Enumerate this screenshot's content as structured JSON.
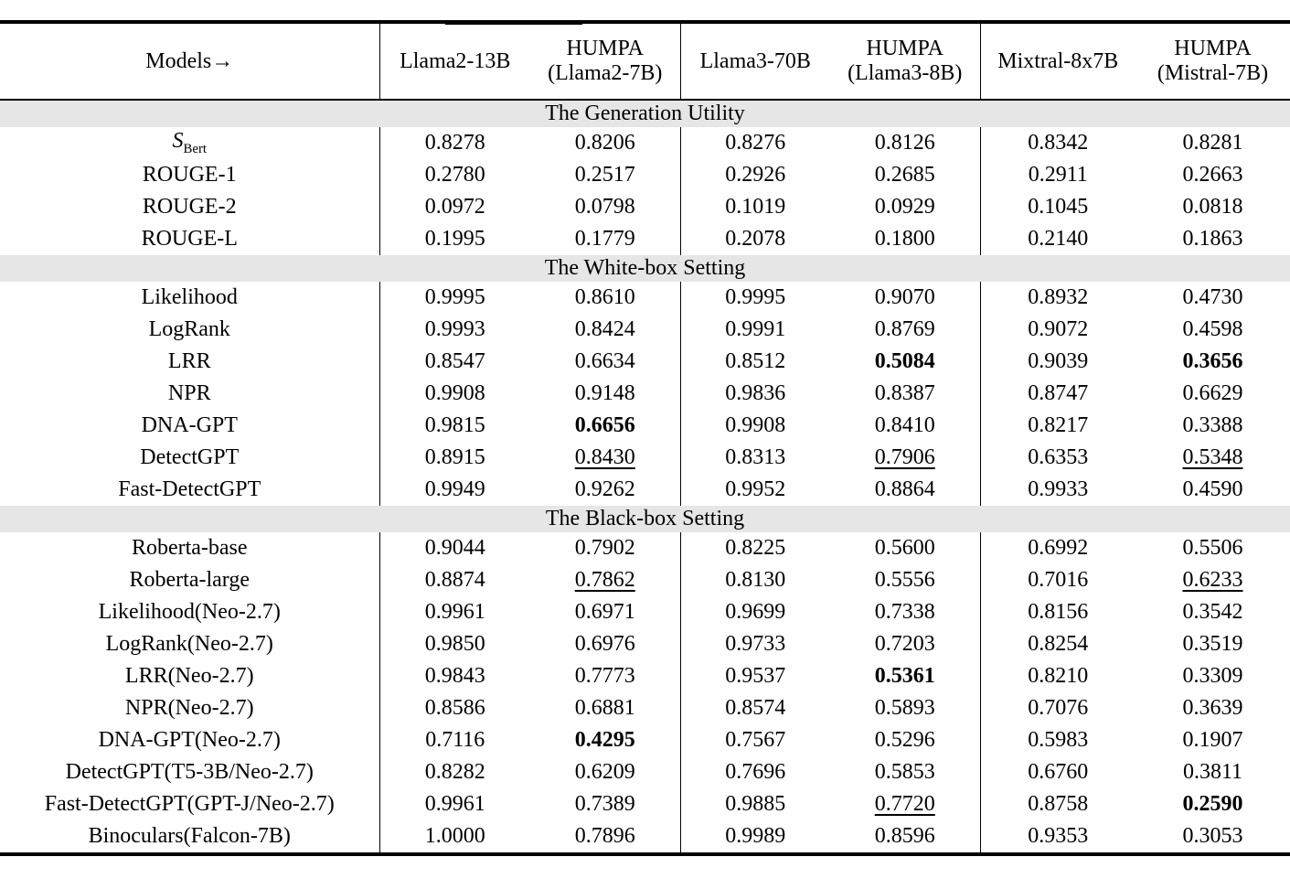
{
  "colors": {
    "background": "#ffffff",
    "rule": "#000000",
    "section_band": "#e6e6e6",
    "text": "#000000"
  },
  "table": {
    "header": {
      "models_label": "Models→",
      "groups": [
        {
          "base": "Llama2-13B",
          "humpa": [
            "HUMPA",
            "(Llama2-7B)"
          ]
        },
        {
          "base": "Llama3-70B",
          "humpa": [
            "HUMPA",
            "(Llama3-8B)"
          ]
        },
        {
          "base": "Mixtral-8x7B",
          "humpa": [
            "HUMPA",
            "(Mistral-7B)"
          ]
        }
      ]
    },
    "sections": [
      {
        "title": "The Generation Utility",
        "rows": [
          {
            "label": "S",
            "label_sub": "Bert",
            "values": [
              "0.8278",
              "0.8206",
              "0.8276",
              "0.8126",
              "0.8342",
              "0.8281"
            ]
          },
          {
            "label": "ROUGE-1",
            "values": [
              "0.2780",
              "0.2517",
              "0.2926",
              "0.2685",
              "0.2911",
              "0.2663"
            ]
          },
          {
            "label": "ROUGE-2",
            "values": [
              "0.0972",
              "0.0798",
              "0.1019",
              "0.0929",
              "0.1045",
              "0.0818"
            ]
          },
          {
            "label": "ROUGE-L",
            "values": [
              "0.1995",
              "0.1779",
              "0.2078",
              "0.1800",
              "0.2140",
              "0.1863"
            ]
          }
        ]
      },
      {
        "title": "The White-box Setting",
        "rows": [
          {
            "label": "Likelihood",
            "values": [
              "0.9995",
              "0.8610",
              "0.9995",
              "0.9070",
              "0.8932",
              "0.4730"
            ]
          },
          {
            "label": "LogRank",
            "values": [
              "0.9993",
              "0.8424",
              "0.9991",
              "0.8769",
              "0.9072",
              "0.4598"
            ]
          },
          {
            "label": "LRR",
            "values": [
              "0.8547",
              "0.6634",
              "0.8512",
              {
                "v": "0.5084",
                "em": "bold"
              },
              "0.9039",
              {
                "v": "0.3656",
                "em": "bold"
              }
            ]
          },
          {
            "label": "NPR",
            "values": [
              "0.9908",
              "0.9148",
              "0.9836",
              "0.8387",
              "0.8747",
              "0.6629"
            ]
          },
          {
            "label": "DNA-GPT",
            "values": [
              "0.9815",
              {
                "v": "0.6656",
                "em": "bold"
              },
              "0.9908",
              "0.8410",
              "0.8217",
              "0.3388"
            ]
          },
          {
            "label": "DetectGPT",
            "values": [
              "0.8915",
              {
                "v": "0.8430",
                "em": "underline"
              },
              "0.8313",
              {
                "v": "0.7906",
                "em": "underline"
              },
              "0.6353",
              {
                "v": "0.5348",
                "em": "underline"
              }
            ]
          },
          {
            "label": "Fast-DetectGPT",
            "values": [
              "0.9949",
              "0.9262",
              "0.9952",
              "0.8864",
              "0.9933",
              "0.4590"
            ]
          }
        ]
      },
      {
        "title": "The Black-box Setting",
        "rows": [
          {
            "label": "Roberta-base",
            "values": [
              "0.9044",
              "0.7902",
              "0.8225",
              "0.5600",
              "0.6992",
              "0.5506"
            ]
          },
          {
            "label": "Roberta-large",
            "values": [
              "0.8874",
              {
                "v": "0.7862",
                "em": "underline"
              },
              "0.8130",
              "0.5556",
              "0.7016",
              {
                "v": "0.6233",
                "em": "underline"
              }
            ]
          },
          {
            "label": "Likelihood(Neo-2.7)",
            "values": [
              "0.9961",
              "0.6971",
              "0.9699",
              "0.7338",
              "0.8156",
              "0.3542"
            ]
          },
          {
            "label": "LogRank(Neo-2.7)",
            "values": [
              "0.9850",
              "0.6976",
              "0.9733",
              "0.7203",
              "0.8254",
              "0.3519"
            ]
          },
          {
            "label": "LRR(Neo-2.7)",
            "values": [
              "0.9843",
              "0.7773",
              "0.9537",
              {
                "v": "0.5361",
                "em": "bold"
              },
              "0.8210",
              "0.3309"
            ]
          },
          {
            "label": "NPR(Neo-2.7)",
            "values": [
              "0.8586",
              "0.6881",
              "0.8574",
              "0.5893",
              "0.7076",
              "0.3639"
            ]
          },
          {
            "label": "DNA-GPT(Neo-2.7)",
            "values": [
              "0.7116",
              {
                "v": "0.4295",
                "em": "bold"
              },
              "0.7567",
              "0.5296",
              "0.5983",
              "0.1907"
            ]
          },
          {
            "label": "DetectGPT(T5-3B/Neo-2.7)",
            "values": [
              "0.8282",
              "0.6209",
              "0.7696",
              "0.5853",
              "0.6760",
              "0.3811"
            ]
          },
          {
            "label": "Fast-DetectGPT(GPT-J/Neo-2.7)",
            "values": [
              "0.9961",
              "0.7389",
              "0.9885",
              {
                "v": "0.7720",
                "em": "underline"
              },
              "0.8758",
              {
                "v": "0.2590",
                "em": "bold"
              }
            ]
          },
          {
            "label": "Binoculars(Falcon-7B)",
            "values": [
              "1.0000",
              "0.7896",
              "0.9989",
              "0.8596",
              "0.9353",
              "0.3053"
            ]
          }
        ]
      }
    ]
  }
}
